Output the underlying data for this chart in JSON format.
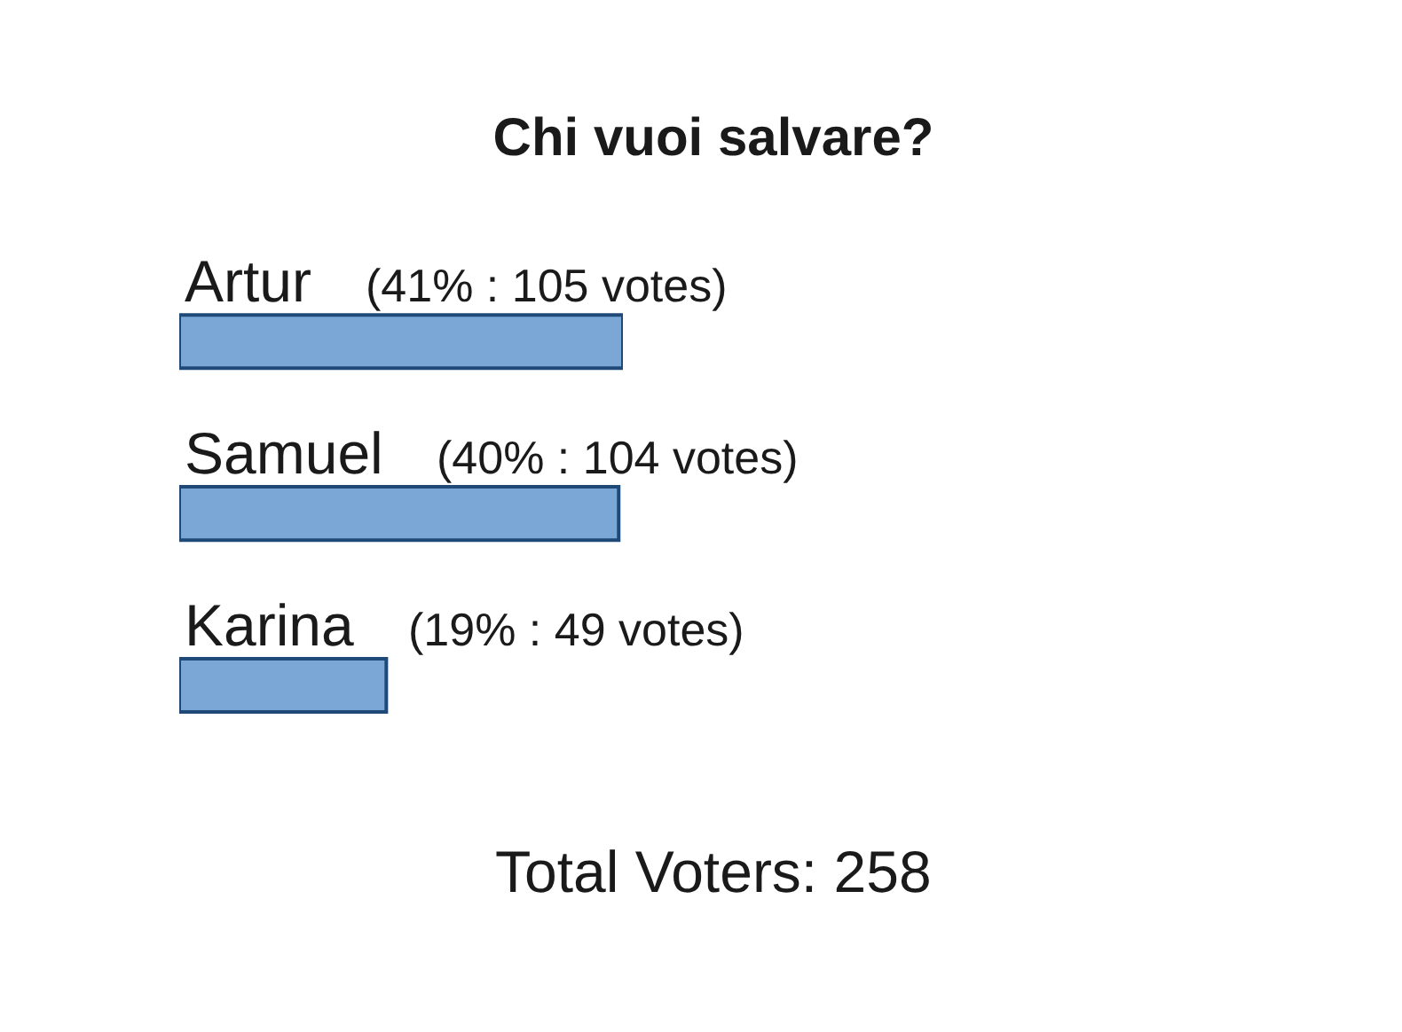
{
  "chart_data": {
    "type": "bar",
    "orientation": "horizontal",
    "title": "Chi vuoi salvare?",
    "categories": [
      "Artur",
      "Samuel",
      "Karina"
    ],
    "values": [
      105,
      104,
      49
    ],
    "color": "#7ba7d7",
    "value_labels": [
      "(41% : 105 votes)",
      "(40% : 104 votes)",
      "(19% : 49 votes)"
    ],
    "tick_labels": "y",
    "annotations": [
      "Total Voters: 258"
    ]
  }
}
